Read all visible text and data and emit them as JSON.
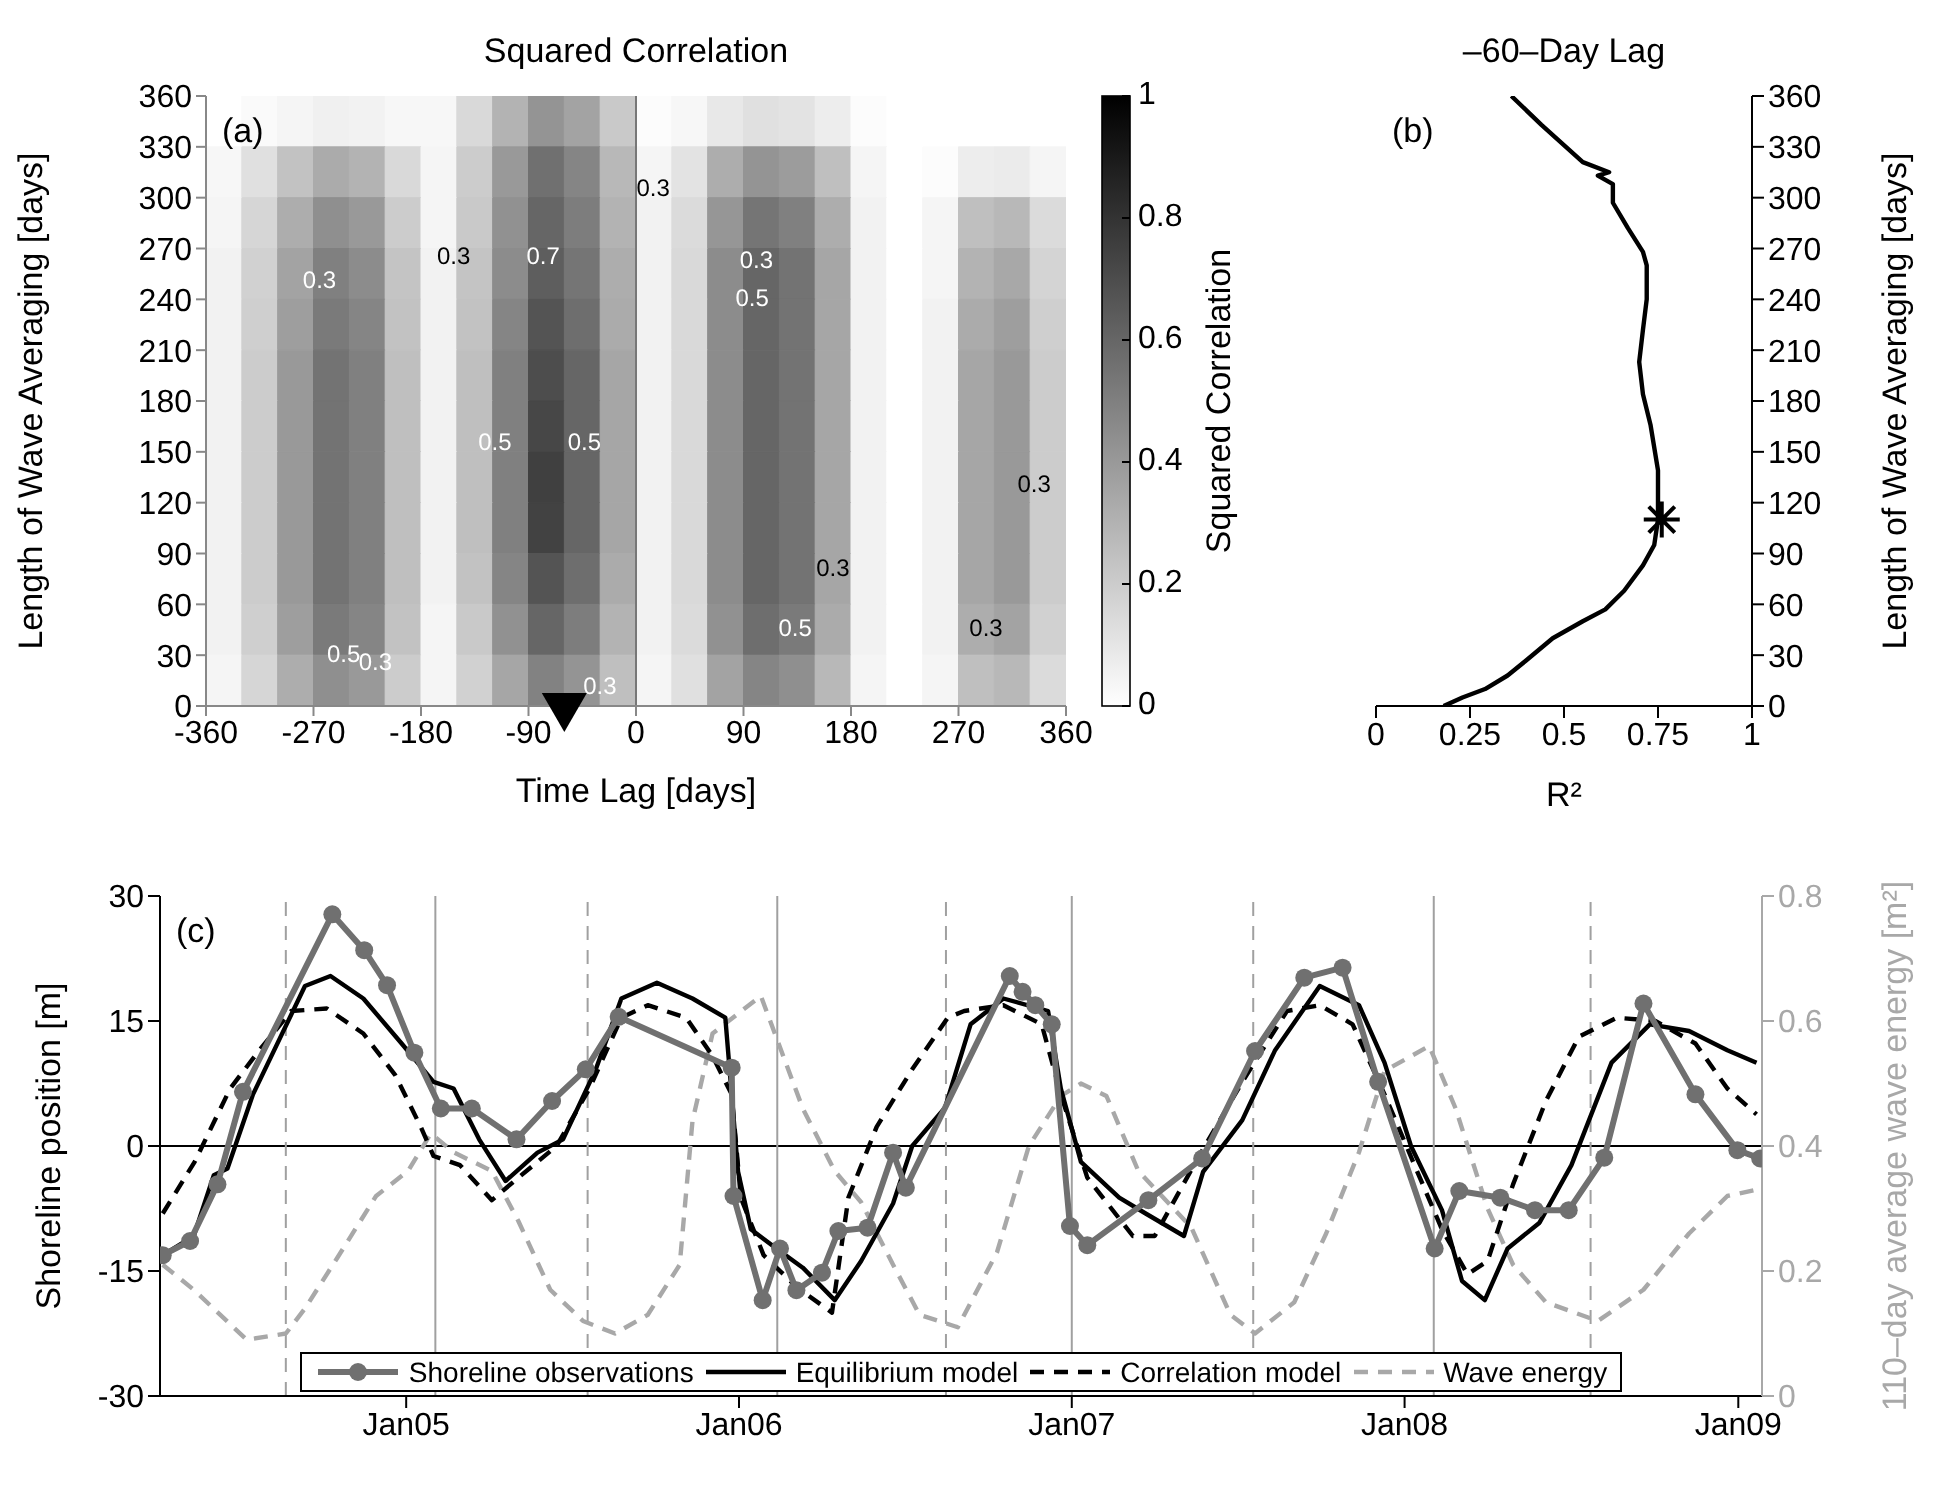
{
  "chart_data": [
    {
      "type": "heatmap",
      "title": "Squared Correlation",
      "xlabel": "Time Lag [days]",
      "ylabel": "Length of Wave Averaging [days]",
      "clabel": "Squared Correlation",
      "xlim": [
        -360,
        360
      ],
      "xticks": [
        -360,
        -270,
        -180,
        -90,
        0,
        90,
        180,
        270,
        360
      ],
      "ylim": [
        0,
        360
      ],
      "yticks": [
        0,
        30,
        60,
        90,
        120,
        150,
        180,
        210,
        240,
        270,
        300,
        330,
        360
      ],
      "clim": [
        0,
        1
      ],
      "cticks": [
        0,
        0.2,
        0.4,
        0.6,
        0.8,
        1
      ],
      "cells": [
        [
          0,
          0.02,
          0.04,
          0.06,
          0.05,
          0.03,
          0.03,
          0.15,
          0.3,
          0.42,
          0.36,
          0.21,
          0.01,
          0.03,
          0.09,
          0.12,
          0.11,
          0.07,
          0.01,
          0,
          0,
          0,
          0,
          0
        ],
        [
          0.03,
          0.12,
          0.24,
          0.33,
          0.3,
          0.15,
          0.04,
          0.2,
          0.4,
          0.56,
          0.48,
          0.28,
          0.04,
          0.11,
          0.32,
          0.42,
          0.39,
          0.25,
          0.04,
          0,
          0.01,
          0.07,
          0.08,
          0.04
        ],
        [
          0.04,
          0.16,
          0.32,
          0.44,
          0.4,
          0.2,
          0.04,
          0.21,
          0.43,
          0.6,
          0.51,
          0.3,
          0.05,
          0.14,
          0.41,
          0.54,
          0.5,
          0.32,
          0.05,
          0,
          0.04,
          0.25,
          0.28,
          0.14
        ],
        [
          0.05,
          0.18,
          0.36,
          0.5,
          0.45,
          0.23,
          0.05,
          0.23,
          0.45,
          0.63,
          0.54,
          0.32,
          0.05,
          0.15,
          0.45,
          0.6,
          0.55,
          0.35,
          0.05,
          0,
          0.04,
          0.3,
          0.34,
          0.17
        ],
        [
          0.05,
          0.19,
          0.38,
          0.52,
          0.48,
          0.24,
          0.05,
          0.24,
          0.48,
          0.67,
          0.57,
          0.33,
          0.05,
          0.15,
          0.45,
          0.6,
          0.55,
          0.35,
          0.05,
          0,
          0.05,
          0.33,
          0.38,
          0.19
        ],
        [
          0.05,
          0.2,
          0.4,
          0.55,
          0.5,
          0.25,
          0.05,
          0.25,
          0.5,
          0.7,
          0.6,
          0.35,
          0.05,
          0.15,
          0.45,
          0.6,
          0.55,
          0.35,
          0.05,
          0,
          0.05,
          0.35,
          0.4,
          0.2
        ],
        [
          0.05,
          0.2,
          0.4,
          0.55,
          0.5,
          0.25,
          0.05,
          0.25,
          0.5,
          0.72,
          0.6,
          0.35,
          0.05,
          0.15,
          0.45,
          0.6,
          0.55,
          0.35,
          0.05,
          0,
          0.05,
          0.35,
          0.4,
          0.2
        ],
        [
          0.05,
          0.2,
          0.4,
          0.55,
          0.5,
          0.25,
          0.05,
          0.25,
          0.5,
          0.75,
          0.6,
          0.35,
          0.05,
          0.15,
          0.45,
          0.6,
          0.55,
          0.35,
          0.05,
          0,
          0.05,
          0.35,
          0.4,
          0.2
        ],
        [
          0.05,
          0.2,
          0.4,
          0.55,
          0.5,
          0.25,
          0.05,
          0.25,
          0.5,
          0.74,
          0.6,
          0.35,
          0.05,
          0.15,
          0.45,
          0.6,
          0.55,
          0.35,
          0.05,
          0,
          0.05,
          0.35,
          0.4,
          0.2
        ],
        [
          0.05,
          0.2,
          0.4,
          0.55,
          0.5,
          0.25,
          0.05,
          0.24,
          0.48,
          0.67,
          0.57,
          0.33,
          0.05,
          0.15,
          0.45,
          0.6,
          0.55,
          0.35,
          0.05,
          0,
          0.05,
          0.35,
          0.4,
          0.2
        ],
        [
          0.05,
          0.19,
          0.38,
          0.52,
          0.48,
          0.24,
          0.04,
          0.21,
          0.43,
          0.6,
          0.51,
          0.3,
          0.05,
          0.14,
          0.43,
          0.57,
          0.52,
          0.33,
          0.05,
          0,
          0.05,
          0.32,
          0.36,
          0.18
        ],
        [
          0.04,
          0.16,
          0.32,
          0.44,
          0.4,
          0.2,
          0.04,
          0.18,
          0.35,
          0.49,
          0.42,
          0.25,
          0.04,
          0.12,
          0.36,
          0.48,
          0.44,
          0.28,
          0.04,
          0,
          0.04,
          0.25,
          0.28,
          0.14
        ]
      ],
      "ref_lines": [
        {
          "axis": "x",
          "value": 0,
          "color": "#777777"
        }
      ],
      "series": [
        {
          "type": "scatter",
          "marker": "triangle",
          "color": "#000000",
          "x": [
            -60
          ],
          "values": [
            0
          ]
        }
      ],
      "annotations": [
        "(a)",
        "0.3",
        "0.5",
        "0.3",
        "0.3",
        "0.7",
        "0.5",
        "0.5",
        "0.3",
        "0.3",
        "0.3",
        "0.5",
        "0.3",
        "0.5",
        "0.3",
        "0.3"
      ]
    },
    {
      "type": "line",
      "title": "–60–Day Lag",
      "xlabel": "R²",
      "y2label": "Length of Wave Averaging [days]",
      "xlim": [
        0,
        1
      ],
      "xticks": [
        0,
        0.25,
        0.5,
        0.75,
        1
      ],
      "y2lim": [
        0,
        360
      ],
      "y2ticks": [
        0,
        30,
        60,
        90,
        120,
        150,
        180,
        210,
        240,
        270,
        300,
        330,
        360
      ],
      "series": [
        {
          "color": "#000000",
          "axis": "y2",
          "x": [
            0.36,
            0.44,
            0.55,
            0.62,
            0.59,
            0.63,
            0.63,
            0.67,
            0.71,
            0.72,
            0.72,
            0.71,
            0.7,
            0.71,
            0.73,
            0.75,
            0.75,
            0.75,
            0.74,
            0.71,
            0.66,
            0.61,
            0.55,
            0.47,
            0.4,
            0.35,
            0.29,
            0.23,
            0.18
          ],
          "values": [
            360,
            343,
            321,
            315,
            313,
            308,
            297,
            282,
            268,
            260,
            240,
            222,
            203,
            184,
            166,
            139,
            124,
            110,
            95,
            83,
            68,
            57,
            50,
            40,
            27,
            18,
            10,
            5,
            0
          ]
        },
        {
          "type": "scatter",
          "marker": "cross",
          "color": "#000000",
          "axis": "y2",
          "x": [
            0.76
          ],
          "values": [
            110
          ]
        }
      ],
      "annotations": [
        "(b)"
      ]
    },
    {
      "type": "line",
      "ylabel": "Shoreline position [m]",
      "y2label": "110–day average wave energy [m²]",
      "xlim": [
        "2004-04-06",
        "2009-01-27"
      ],
      "xticks": [
        {
          "value": "2005-01-01",
          "label": "Jan05"
        },
        {
          "value": "2006-01-01",
          "label": "Jan06"
        },
        {
          "value": "2007-01-01",
          "label": "Jan07"
        },
        {
          "value": "2008-01-01",
          "label": "Jan08"
        },
        {
          "value": "2009-01-01",
          "label": "Jan09"
        }
      ],
      "ylim": [
        -30,
        30
      ],
      "yticks": [
        -30,
        -15,
        0,
        15,
        30
      ],
      "y2lim": [
        0,
        0.8
      ],
      "y2ticks": [
        0,
        0.2,
        0.4,
        0.6,
        0.8
      ],
      "legend": "bottom",
      "ref_lines": [
        {
          "axis": "y",
          "value": 0,
          "color": "#000000"
        },
        {
          "axis": "x",
          "value": "2005-02-02",
          "color": "#a0a0a0"
        },
        {
          "axis": "x",
          "value": "2006-02-12",
          "color": "#a0a0a0"
        },
        {
          "axis": "x",
          "value": "2007-01-01",
          "color": "#a0a0a0"
        },
        {
          "axis": "x",
          "value": "2008-02-02",
          "color": "#a0a0a0"
        },
        {
          "axis": "x",
          "value": "2004-08-22",
          "color": "#a0a0a0",
          "line_style": "dashed"
        },
        {
          "axis": "x",
          "value": "2005-07-19",
          "color": "#a0a0a0",
          "line_style": "dashed"
        },
        {
          "axis": "x",
          "value": "2006-08-16",
          "color": "#a0a0a0",
          "line_style": "dashed"
        },
        {
          "axis": "x",
          "value": "2007-07-19",
          "color": "#a0a0a0",
          "line_style": "dashed"
        },
        {
          "axis": "x",
          "value": "2008-07-23",
          "color": "#a0a0a0",
          "line_style": "dashed"
        }
      ],
      "series": [
        {
          "name": "Wave energy",
          "color": "#a8a8a8",
          "axis": "y2",
          "line_style": "dashed",
          "x": [
            "2004-04-09",
            "2004-05-13",
            "2004-07-10",
            "2004-08-22",
            "2004-09-12",
            "2004-10-17",
            "2004-11-29",
            "2005-01-03",
            "2005-01-28",
            "2005-02-22",
            "2005-04-05",
            "2005-05-04",
            "2005-06-08",
            "2005-07-14",
            "2005-08-18",
            "2005-09-23",
            "2005-10-28",
            "2005-11-11",
            "2005-12-03",
            "2006-01-25",
            "2006-03-12",
            "2006-04-16",
            "2006-05-15",
            "2006-06-19",
            "2006-07-18",
            "2006-08-29",
            "2006-10-11",
            "2006-11-15",
            "2006-12-20",
            "2007-01-11",
            "2007-02-08",
            "2007-03-15",
            "2007-05-12",
            "2007-06-24",
            "2007-07-21",
            "2007-09-02",
            "2007-10-07",
            "2007-11-12",
            "2007-12-10",
            "2008-01-28",
            "2008-02-26",
            "2008-04-01",
            "2008-04-29",
            "2008-06-04",
            "2008-07-31",
            "2008-09-19",
            "2008-11-08",
            "2008-12-20",
            "2009-01-21"
          ],
          "values": [
            0.21,
            0.17,
            0.09,
            0.1,
            0.14,
            0.22,
            0.32,
            0.36,
            0.42,
            0.39,
            0.36,
            0.28,
            0.17,
            0.12,
            0.1,
            0.13,
            0.21,
            0.44,
            0.58,
            0.64,
            0.46,
            0.36,
            0.31,
            0.21,
            0.13,
            0.11,
            0.23,
            0.4,
            0.48,
            0.5,
            0.48,
            0.36,
            0.27,
            0.13,
            0.1,
            0.15,
            0.26,
            0.39,
            0.52,
            0.56,
            0.46,
            0.3,
            0.21,
            0.15,
            0.12,
            0.17,
            0.26,
            0.32,
            0.33
          ]
        },
        {
          "name": "Correlation model",
          "color": "#000000",
          "line_style": "dashed",
          "x": [
            "2004-04-09",
            "2004-05-14",
            "2004-06-22",
            "2004-07-24",
            "2004-08-28",
            "2004-10-06",
            "2004-11-15",
            "2004-12-20",
            "2005-01-17",
            "2005-01-31",
            "2005-03-01",
            "2005-04-05",
            "2005-05-04",
            "2005-06-15",
            "2005-07-21",
            "2005-08-25",
            "2005-09-23",
            "2005-11-04",
            "2005-12-03",
            "2005-12-24",
            "2006-01-03",
            "2006-01-28",
            "2006-03-05",
            "2006-04-13",
            "2006-05-01",
            "2006-06-01",
            "2006-07-10",
            "2006-08-18",
            "2006-09-05",
            "2006-10-18",
            "2006-11-29",
            "2006-12-20",
            "2007-01-18",
            "2007-03-09",
            "2007-04-02",
            "2007-05-19",
            "2007-07-07",
            "2007-08-25",
            "2007-09-30",
            "2007-11-05",
            "2007-12-10",
            "2008-01-15",
            "2008-02-11",
            "2008-03-10",
            "2008-04-01",
            "2008-04-29",
            "2008-06-04",
            "2008-07-10",
            "2008-08-21",
            "2008-10-02",
            "2008-11-15",
            "2008-12-20",
            "2009-01-21"
          ],
          "values": [
            -8.1,
            -1.9,
            6.9,
            11.5,
            16.2,
            16.5,
            13.5,
            8.5,
            2.3,
            -1.2,
            -2.3,
            -6.5,
            -3.8,
            0,
            6.9,
            15.4,
            16.9,
            15.4,
            10.8,
            6.2,
            -6.2,
            -13.1,
            -16.9,
            -20,
            -6.2,
            2.3,
            9.2,
            15.4,
            16.2,
            16.9,
            14.6,
            6.2,
            -3.8,
            -10.8,
            -10.8,
            -1.5,
            7.7,
            16.2,
            16.9,
            14.6,
            6.2,
            -3.1,
            -10,
            -15.4,
            -13.8,
            -4.6,
            5.4,
            13.1,
            15.4,
            15,
            12.3,
            6.9,
            3.8
          ]
        },
        {
          "name": "Equilibrium model",
          "color": "#000000",
          "x": [
            "2004-04-09",
            "2004-05-13",
            "2004-06-04",
            "2004-06-19",
            "2004-07-17",
            "2004-09-12",
            "2004-10-10",
            "2004-11-15",
            "2004-12-27",
            "2005-01-31",
            "2005-02-22",
            "2005-03-22",
            "2005-04-20",
            "2005-05-25",
            "2005-06-22",
            "2005-07-28",
            "2005-08-25",
            "2005-10-03",
            "2005-11-11",
            "2005-12-17",
            "2005-12-31",
            "2006-01-14",
            "2006-02-11",
            "2006-03-12",
            "2006-04-16",
            "2006-05-15",
            "2006-06-19",
            "2006-07-10",
            "2006-08-15",
            "2006-09-12",
            "2006-10-18",
            "2006-12-06",
            "2006-12-20",
            "2007-01-11",
            "2007-02-22",
            "2007-03-23",
            "2007-05-04",
            "2007-05-25",
            "2007-07-07",
            "2007-08-12",
            "2007-09-30",
            "2007-11-12",
            "2007-12-10",
            "2008-01-08",
            "2008-02-11",
            "2008-03-04",
            "2008-03-29",
            "2008-04-23",
            "2008-05-28",
            "2008-07-02",
            "2008-08-15",
            "2008-09-26",
            "2008-11-08",
            "2008-12-20",
            "2009-01-21"
          ],
          "values": [
            -13.1,
            -10.8,
            -3.5,
            -2.7,
            6.2,
            19.2,
            20.4,
            17.7,
            12.3,
            7.7,
            6.9,
            0.8,
            -4.2,
            -0.8,
            0.8,
            9.2,
            17.7,
            19.6,
            17.7,
            15.4,
            -3.1,
            -10,
            -12.3,
            -14.6,
            -18.5,
            -13.8,
            -6.9,
            0,
            4.6,
            14.6,
            17.7,
            16.2,
            6.9,
            -1.9,
            -6.2,
            -8.1,
            -10.8,
            -3.1,
            3.1,
            11.5,
            19.2,
            16.9,
            10,
            0,
            -7.7,
            -16.2,
            -18.5,
            -12.3,
            -9.2,
            -2.3,
            10,
            14.6,
            13.8,
            11.5,
            10
          ]
        },
        {
          "name": "Shoreline observations",
          "color": "#707070",
          "marker": "circle",
          "x": [
            "2004-04-09",
            "2004-05-09",
            "2004-06-08",
            "2004-07-06",
            "2004-10-12",
            "2004-11-16",
            "2004-12-11",
            "2005-01-10",
            "2005-02-08",
            "2005-03-14",
            "2005-05-02",
            "2005-06-10",
            "2005-07-17",
            "2005-08-22",
            "2005-12-24",
            "2005-12-26",
            "2006-01-27",
            "2006-02-15",
            "2006-03-05",
            "2006-04-02",
            "2006-04-20",
            "2006-05-22",
            "2006-06-19",
            "2006-07-03",
            "2006-10-25",
            "2006-11-08",
            "2006-11-22",
            "2006-12-10",
            "2006-12-30",
            "2007-01-18",
            "2007-03-26",
            "2007-05-24",
            "2007-07-21",
            "2007-09-13",
            "2007-10-25",
            "2007-12-03",
            "2008-02-03",
            "2008-03-01",
            "2008-04-15",
            "2008-05-23",
            "2008-06-29",
            "2008-08-07",
            "2008-09-19",
            "2008-11-15",
            "2008-12-31",
            "2009-01-25"
          ],
          "values": [
            -13.1,
            -11.4,
            -4.6,
            6.5,
            27.8,
            23.5,
            19.3,
            11.2,
            4.5,
            4.5,
            0.8,
            5.4,
            9.2,
            15.5,
            9.4,
            -6,
            -18.5,
            -12.3,
            -17.3,
            -15.2,
            -10.2,
            -9.8,
            -0.8,
            -5,
            20.4,
            18.5,
            16.9,
            14.6,
            -9.6,
            -11.9,
            -6.5,
            -1.5,
            11.4,
            20.2,
            21.4,
            7.7,
            -12.3,
            -5.4,
            -6.2,
            -7.7,
            -7.7,
            -1.4,
            17.1,
            6.2,
            -0.5,
            -1.5
          ]
        }
      ],
      "annotations": [
        "(c)"
      ]
    }
  ]
}
